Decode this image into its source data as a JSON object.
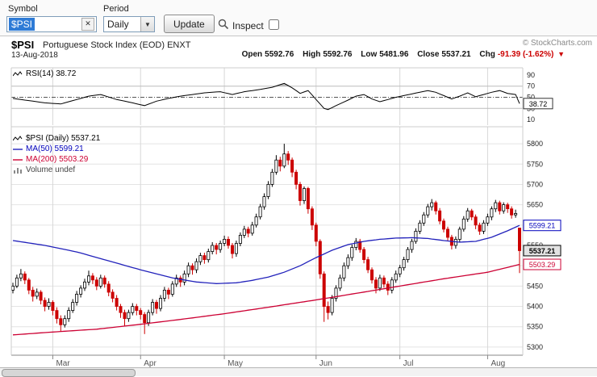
{
  "toolbar": {
    "symbol_label": "Symbol",
    "symbol_value": "$PSI",
    "clear_x": "✕",
    "period_label": "Period",
    "period_value": "Daily",
    "dropdown_arrow": "▼",
    "update_label": "Update",
    "inspect_label": "Inspect"
  },
  "header": {
    "symbol": "$PSI",
    "title": "Portuguese Stock Index (EOD) ENXT",
    "date": "13-Aug-2018",
    "copyright": "© StockCharts.com",
    "quote": {
      "open_label": "Open",
      "open": "5592.76",
      "high_label": "High",
      "high": "5592.76",
      "low_label": "Low",
      "low": "5481.96",
      "close_label": "Close",
      "close": "5537.21",
      "chg_label": "Chg",
      "chg": "-91.39 (-1.62%)",
      "arrow": "▼",
      "direction": "down"
    }
  },
  "rsi_panel": {
    "label": "RSI(14) 38.72",
    "value_box": {
      "label": "38.72",
      "value": 38.72
    }
  },
  "main_panel": {
    "price_label": "$PSI (Daily) 5537.21",
    "ma50_label": "MA(50) 5599.21",
    "ma200_label": "MA(200) 5503.29",
    "volume_label": "Volume undef",
    "value_boxes": [
      {
        "label": "5599.21",
        "price": 5599.21,
        "color": "#0000bb",
        "bg": "#ffffff",
        "bold": false
      },
      {
        "label": "5537.21",
        "price": 5537.21,
        "color": "#000000",
        "bg": "#e2e2e2",
        "bold": true
      },
      {
        "label": "5503.29",
        "price": 5503.29,
        "color": "#cc0033",
        "bg": "#ffffff",
        "bold": false
      }
    ]
  },
  "colors": {
    "up": "#000000",
    "up_fill": "#ffffff",
    "down": "#cc0000",
    "ma50": "#2222bb",
    "ma200": "#cc0033",
    "rsi_line": "#000000",
    "grid": "#e4e4e4",
    "month_grid": "#d8d8d8",
    "band_fill": "#a6a6a6",
    "axis_text": "#222222",
    "month_text": "#555555",
    "frame": "#cccccc",
    "selection": "#2e7bd6"
  },
  "chart_data": {
    "type": "candlestick",
    "symbol": "$PSI",
    "timeframe": "Daily",
    "title": "$PSI Portuguese Stock Index (EOD) ENXT",
    "ylim": [
      5280,
      5820
    ],
    "price_ticks": [
      5800,
      5750,
      5700,
      5650,
      5600,
      5550,
      5500,
      5450,
      5400,
      5350,
      5300
    ],
    "x_axis": {
      "labels": [
        "Mar",
        "Apr",
        "May",
        "Jun",
        "Jul",
        "Aug"
      ],
      "tick_indices": [
        10,
        32,
        53,
        76,
        97,
        119
      ]
    },
    "last": {
      "open": 5592.76,
      "high": 5592.76,
      "low": 5481.96,
      "close": 5537.21,
      "change": -91.39,
      "change_pct": -1.62
    },
    "ma50_last": 5599.21,
    "ma200_last": 5503.29,
    "candles": [
      [
        5440,
        5458,
        5432,
        5450
      ],
      [
        5450,
        5478,
        5445,
        5470
      ],
      [
        5470,
        5492,
        5462,
        5480
      ],
      [
        5480,
        5486,
        5455,
        5465
      ],
      [
        5465,
        5470,
        5430,
        5440
      ],
      [
        5440,
        5448,
        5412,
        5425
      ],
      [
        5425,
        5444,
        5418,
        5435
      ],
      [
        5435,
        5440,
        5405,
        5415
      ],
      [
        5415,
        5422,
        5388,
        5400
      ],
      [
        5400,
        5420,
        5392,
        5410
      ],
      [
        5410,
        5415,
        5378,
        5390
      ],
      [
        5390,
        5398,
        5358,
        5370
      ],
      [
        5370,
        5378,
        5338,
        5355
      ],
      [
        5355,
        5378,
        5348,
        5370
      ],
      [
        5370,
        5398,
        5362,
        5390
      ],
      [
        5390,
        5418,
        5384,
        5410
      ],
      [
        5410,
        5438,
        5402,
        5430
      ],
      [
        5430,
        5452,
        5422,
        5445
      ],
      [
        5445,
        5468,
        5438,
        5460
      ],
      [
        5460,
        5488,
        5452,
        5475
      ],
      [
        5475,
        5482,
        5455,
        5465
      ],
      [
        5465,
        5472,
        5440,
        5450
      ],
      [
        5450,
        5478,
        5444,
        5470
      ],
      [
        5470,
        5476,
        5446,
        5455
      ],
      [
        5455,
        5462,
        5425,
        5435
      ],
      [
        5435,
        5442,
        5410,
        5420
      ],
      [
        5420,
        5428,
        5390,
        5400
      ],
      [
        5400,
        5406,
        5372,
        5385
      ],
      [
        5385,
        5392,
        5352,
        5370
      ],
      [
        5370,
        5392,
        5362,
        5385
      ],
      [
        5385,
        5408,
        5378,
        5400
      ],
      [
        5400,
        5406,
        5378,
        5390
      ],
      [
        5390,
        5396,
        5368,
        5380
      ],
      [
        5380,
        5386,
        5332,
        5360
      ],
      [
        5360,
        5392,
        5352,
        5385
      ],
      [
        5385,
        5418,
        5378,
        5410
      ],
      [
        5410,
        5416,
        5382,
        5395
      ],
      [
        5395,
        5428,
        5388,
        5420
      ],
      [
        5420,
        5448,
        5412,
        5440
      ],
      [
        5440,
        5446,
        5418,
        5430
      ],
      [
        5430,
        5462,
        5424,
        5455
      ],
      [
        5455,
        5478,
        5448,
        5470
      ],
      [
        5470,
        5476,
        5448,
        5460
      ],
      [
        5460,
        5488,
        5452,
        5480
      ],
      [
        5480,
        5508,
        5472,
        5500
      ],
      [
        5500,
        5506,
        5478,
        5490
      ],
      [
        5490,
        5518,
        5482,
        5510
      ],
      [
        5510,
        5532,
        5502,
        5525
      ],
      [
        5525,
        5532,
        5505,
        5515
      ],
      [
        5515,
        5542,
        5508,
        5535
      ],
      [
        5535,
        5558,
        5528,
        5550
      ],
      [
        5550,
        5556,
        5528,
        5540
      ],
      [
        5540,
        5562,
        5532,
        5555
      ],
      [
        5555,
        5574,
        5548,
        5565
      ],
      [
        5565,
        5572,
        5542,
        5550
      ],
      [
        5550,
        5556,
        5518,
        5530
      ],
      [
        5530,
        5562,
        5522,
        5555
      ],
      [
        5555,
        5582,
        5548,
        5575
      ],
      [
        5575,
        5598,
        5568,
        5590
      ],
      [
        5590,
        5596,
        5570,
        5580
      ],
      [
        5580,
        5608,
        5574,
        5600
      ],
      [
        5600,
        5628,
        5594,
        5620
      ],
      [
        5620,
        5652,
        5614,
        5645
      ],
      [
        5645,
        5678,
        5638,
        5670
      ],
      [
        5670,
        5708,
        5664,
        5700
      ],
      [
        5700,
        5738,
        5694,
        5730
      ],
      [
        5730,
        5772,
        5724,
        5760
      ],
      [
        5760,
        5768,
        5732,
        5745
      ],
      [
        5745,
        5800,
        5740,
        5775
      ],
      [
        5775,
        5782,
        5748,
        5760
      ],
      [
        5760,
        5766,
        5718,
        5730
      ],
      [
        5730,
        5736,
        5688,
        5700
      ],
      [
        5700,
        5706,
        5648,
        5660
      ],
      [
        5660,
        5695,
        5652,
        5690
      ],
      [
        5690,
        5694,
        5628,
        5640
      ],
      [
        5640,
        5646,
        5588,
        5600
      ],
      [
        5600,
        5606,
        5548,
        5560
      ],
      [
        5560,
        5565,
        5468,
        5480
      ],
      [
        5480,
        5486,
        5362,
        5400
      ],
      [
        5400,
        5412,
        5368,
        5385
      ],
      [
        5385,
        5428,
        5378,
        5420
      ],
      [
        5420,
        5452,
        5412,
        5445
      ],
      [
        5445,
        5478,
        5438,
        5470
      ],
      [
        5470,
        5508,
        5462,
        5500
      ],
      [
        5500,
        5528,
        5492,
        5520
      ],
      [
        5520,
        5552,
        5512,
        5545
      ],
      [
        5545,
        5568,
        5538,
        5560
      ],
      [
        5560,
        5566,
        5532,
        5540
      ],
      [
        5540,
        5546,
        5506,
        5515
      ],
      [
        5515,
        5522,
        5482,
        5490
      ],
      [
        5490,
        5496,
        5456,
        5465
      ],
      [
        5465,
        5472,
        5432,
        5445
      ],
      [
        5445,
        5478,
        5438,
        5470
      ],
      [
        5470,
        5476,
        5446,
        5455
      ],
      [
        5455,
        5462,
        5428,
        5440
      ],
      [
        5440,
        5472,
        5432,
        5465
      ],
      [
        5465,
        5488,
        5458,
        5480
      ],
      [
        5480,
        5502,
        5472,
        5495
      ],
      [
        5495,
        5522,
        5488,
        5515
      ],
      [
        5515,
        5546,
        5508,
        5540
      ],
      [
        5540,
        5566,
        5532,
        5560
      ],
      [
        5560,
        5592,
        5554,
        5585
      ],
      [
        5585,
        5612,
        5578,
        5605
      ],
      [
        5605,
        5632,
        5598,
        5625
      ],
      [
        5625,
        5652,
        5618,
        5645
      ],
      [
        5645,
        5664,
        5636,
        5655
      ],
      [
        5655,
        5660,
        5626,
        5635
      ],
      [
        5635,
        5642,
        5602,
        5610
      ],
      [
        5610,
        5616,
        5582,
        5590
      ],
      [
        5590,
        5596,
        5560,
        5570
      ],
      [
        5570,
        5576,
        5540,
        5550
      ],
      [
        5550,
        5572,
        5542,
        5565
      ],
      [
        5565,
        5596,
        5558,
        5590
      ],
      [
        5590,
        5622,
        5584,
        5615
      ],
      [
        5615,
        5642,
        5608,
        5635
      ],
      [
        5635,
        5640,
        5612,
        5620
      ],
      [
        5620,
        5626,
        5590,
        5600
      ],
      [
        5600,
        5606,
        5576,
        5585
      ],
      [
        5585,
        5612,
        5578,
        5605
      ],
      [
        5605,
        5628,
        5598,
        5620
      ],
      [
        5620,
        5646,
        5612,
        5640
      ],
      [
        5640,
        5662,
        5632,
        5655
      ],
      [
        5655,
        5660,
        5626,
        5635
      ],
      [
        5635,
        5656,
        5628,
        5650
      ],
      [
        5650,
        5655,
        5630,
        5640
      ],
      [
        5640,
        5646,
        5616,
        5625
      ],
      [
        5625,
        5638,
        5618,
        5628.6
      ],
      [
        5592.76,
        5592.76,
        5481.96,
        5537.21
      ]
    ],
    "ma50_points": [
      [
        0,
        5562
      ],
      [
        8,
        5550
      ],
      [
        16,
        5534
      ],
      [
        24,
        5512
      ],
      [
        32,
        5490
      ],
      [
        40,
        5470
      ],
      [
        46,
        5460
      ],
      [
        51,
        5456
      ],
      [
        56,
        5458
      ],
      [
        60,
        5464
      ],
      [
        64,
        5472
      ],
      [
        68,
        5484
      ],
      [
        72,
        5500
      ],
      [
        76,
        5520
      ],
      [
        80,
        5538
      ],
      [
        84,
        5552
      ],
      [
        88,
        5560
      ],
      [
        92,
        5565
      ],
      [
        96,
        5568
      ],
      [
        100,
        5569
      ],
      [
        104,
        5567
      ],
      [
        108,
        5562
      ],
      [
        112,
        5558
      ],
      [
        116,
        5560
      ],
      [
        120,
        5570
      ],
      [
        124,
        5586
      ],
      [
        127,
        5599.21
      ]
    ],
    "ma200_points": [
      [
        0,
        5330
      ],
      [
        10,
        5337
      ],
      [
        21,
        5344
      ],
      [
        32,
        5356
      ],
      [
        42,
        5368
      ],
      [
        53,
        5382
      ],
      [
        64,
        5398
      ],
      [
        76,
        5416
      ],
      [
        86,
        5432
      ],
      [
        97,
        5450
      ],
      [
        108,
        5468
      ],
      [
        119,
        5484
      ],
      [
        127,
        5503.29
      ]
    ],
    "rsi": {
      "ticks": [
        90,
        70,
        50,
        30,
        10
      ],
      "overbought": 70,
      "oversold": 30,
      "midline": 50,
      "last": 38.72,
      "points": [
        [
          0,
          48
        ],
        [
          4,
          44
        ],
        [
          8,
          40
        ],
        [
          12,
          38
        ],
        [
          16,
          46
        ],
        [
          19,
          52
        ],
        [
          22,
          55
        ],
        [
          26,
          46
        ],
        [
          30,
          40
        ],
        [
          33,
          35
        ],
        [
          36,
          43
        ],
        [
          39,
          48
        ],
        [
          42,
          52
        ],
        [
          45,
          55
        ],
        [
          48,
          58
        ],
        [
          52,
          60
        ],
        [
          55,
          55
        ],
        [
          58,
          60
        ],
        [
          62,
          64
        ],
        [
          65,
          68
        ],
        [
          68,
          75
        ],
        [
          70,
          67
        ],
        [
          72,
          57
        ],
        [
          74,
          62
        ],
        [
          75,
          54
        ],
        [
          77,
          38
        ],
        [
          78,
          30
        ],
        [
          79,
          28
        ],
        [
          81,
          35
        ],
        [
          84,
          45
        ],
        [
          86,
          52
        ],
        [
          88,
          55
        ],
        [
          90,
          47
        ],
        [
          92,
          42
        ],
        [
          94,
          46
        ],
        [
          96,
          50
        ],
        [
          98,
          53
        ],
        [
          100,
          56
        ],
        [
          104,
          62
        ],
        [
          106,
          59
        ],
        [
          108,
          53
        ],
        [
          110,
          47
        ],
        [
          112,
          52
        ],
        [
          114,
          58
        ],
        [
          116,
          51
        ],
        [
          118,
          55
        ],
        [
          120,
          59
        ],
        [
          122,
          62
        ],
        [
          124,
          57
        ],
        [
          126,
          55
        ],
        [
          127,
          38.72
        ]
      ]
    }
  }
}
